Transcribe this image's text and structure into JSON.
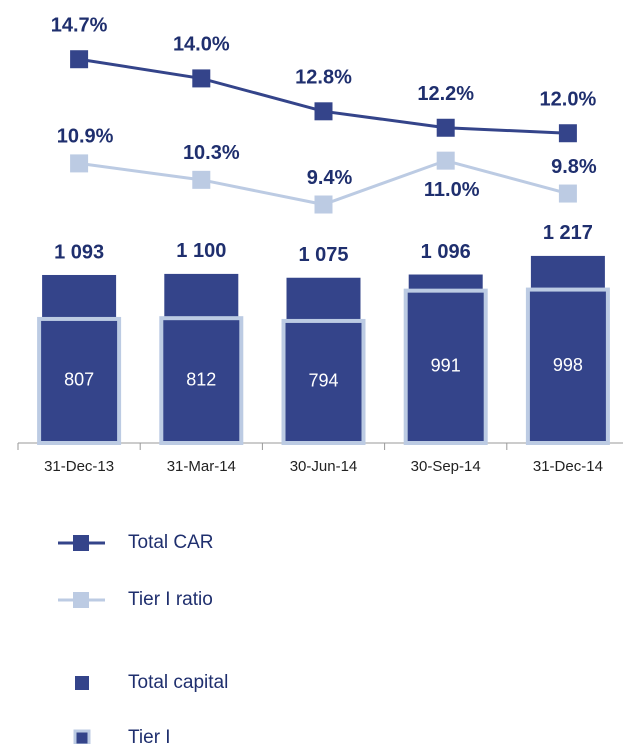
{
  "chart_data": {
    "type": "bar-line",
    "categories": [
      "31-Dec-13",
      "31-Mar-14",
      "30-Jun-14",
      "30-Sep-14",
      "31-Dec-14"
    ],
    "series": [
      {
        "name": "Total CAR",
        "type": "line",
        "axis": "y2",
        "color": "#34448a",
        "values": [
          14.7,
          14.0,
          12.8,
          12.2,
          12.0
        ],
        "value_labels": [
          "14.7%",
          "14.0%",
          "12.8%",
          "12.2%",
          "12.0%"
        ]
      },
      {
        "name": "Tier I ratio",
        "type": "line",
        "axis": "y2",
        "color": "#bccbe3",
        "values": [
          10.9,
          10.3,
          9.4,
          11.0,
          9.8
        ],
        "value_labels": [
          "10.9%",
          "10.3%",
          "9.4%",
          "11.0%",
          "9.8%"
        ]
      },
      {
        "name": "Total capital",
        "type": "bar",
        "color": "#34448a",
        "values": [
          1093,
          1100,
          1075,
          1096,
          1217
        ],
        "value_labels": [
          "1 093",
          "1 100",
          "1 075",
          "1 096",
          "1 217"
        ]
      },
      {
        "name": "Tier I",
        "type": "bar",
        "color": "#34448a",
        "border": "#bccbe3",
        "values": [
          807,
          812,
          794,
          991,
          998
        ]
      }
    ],
    "ylim": [
      0,
      2550
    ],
    "y2lim": [
      0.7,
      15
    ]
  }
}
